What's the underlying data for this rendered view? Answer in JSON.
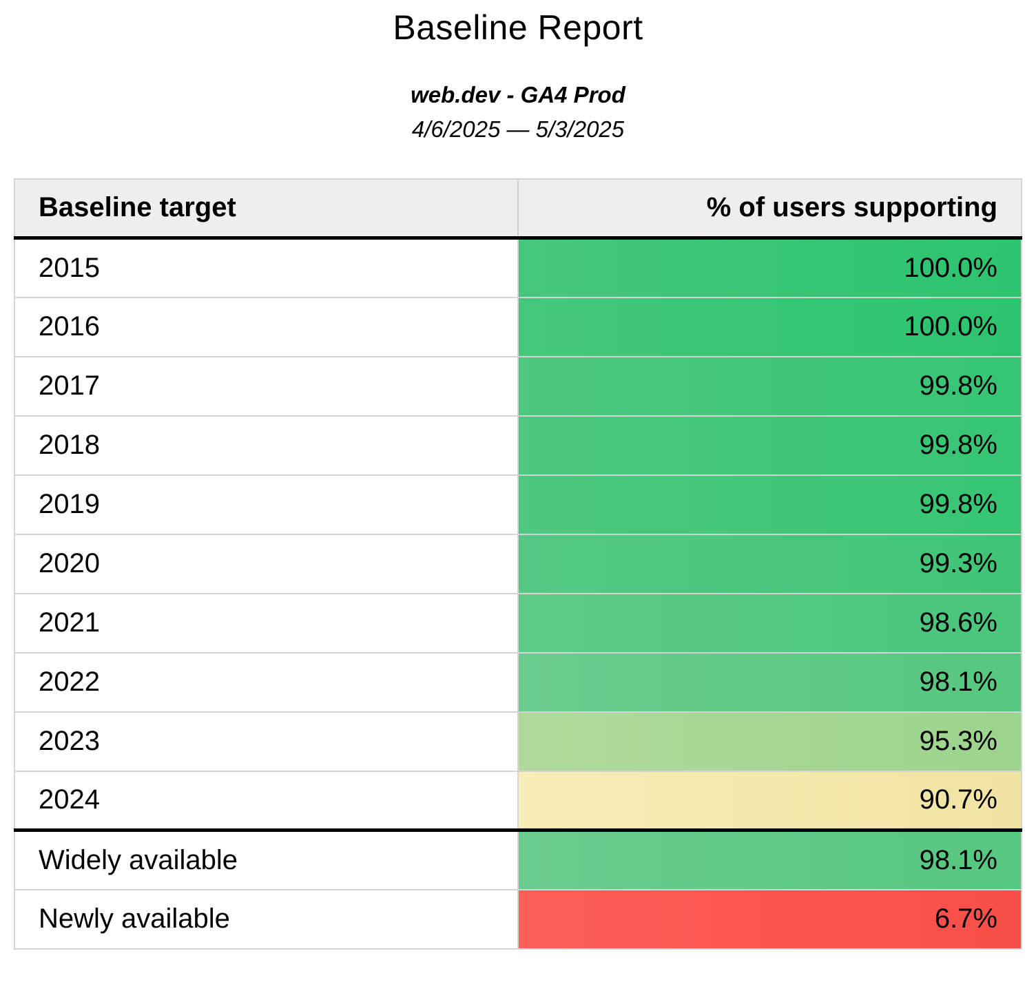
{
  "report": {
    "title": "Baseline Report",
    "property": "web.dev - GA4 Prod",
    "date_range": "4/6/2025 — 5/3/2025"
  },
  "table": {
    "columns": [
      "Baseline target",
      "% of users supporting"
    ],
    "rows": [
      {
        "target": "2015",
        "value": "100.0%",
        "color_left": "#46c77c",
        "color_right": "#2cc46f",
        "divider_before": false
      },
      {
        "target": "2016",
        "value": "100.0%",
        "color_left": "#46c77c",
        "color_right": "#2cc46f",
        "divider_before": false
      },
      {
        "target": "2017",
        "value": "99.8%",
        "color_left": "#4cc880",
        "color_right": "#36c573",
        "divider_before": false
      },
      {
        "target": "2018",
        "value": "99.8%",
        "color_left": "#4cc880",
        "color_right": "#36c573",
        "divider_before": false
      },
      {
        "target": "2019",
        "value": "99.8%",
        "color_left": "#4cc880",
        "color_right": "#36c573",
        "divider_before": false
      },
      {
        "target": "2020",
        "value": "99.3%",
        "color_left": "#55c884",
        "color_right": "#3fc577",
        "divider_before": false
      },
      {
        "target": "2021",
        "value": "98.6%",
        "color_left": "#5fca89",
        "color_right": "#49c67b",
        "divider_before": false
      },
      {
        "target": "2022",
        "value": "98.1%",
        "color_left": "#6bcb8e",
        "color_right": "#55c87f",
        "divider_before": false
      },
      {
        "target": "2023",
        "value": "95.3%",
        "color_left": "#b0da9c",
        "color_right": "#9cd48c",
        "divider_before": false
      },
      {
        "target": "2024",
        "value": "90.7%",
        "color_left": "#f8edb7",
        "color_right": "#f1e3a2",
        "divider_before": false
      },
      {
        "target": "Widely available",
        "value": "98.1%",
        "color_left": "#6bcb8e",
        "color_right": "#55c87f",
        "divider_before": true
      },
      {
        "target": "Newly available",
        "value": "6.7%",
        "color_left": "#fc5f58",
        "color_right": "#f94e48",
        "divider_before": false
      }
    ]
  },
  "colors": {
    "header_background": "#eeeeee",
    "grid_border": "#d4d4d4",
    "section_divider": "#000000",
    "good_green": "#2cc46f",
    "warn_yellow": "#f1e3a2",
    "bad_red": "#f94e48"
  }
}
